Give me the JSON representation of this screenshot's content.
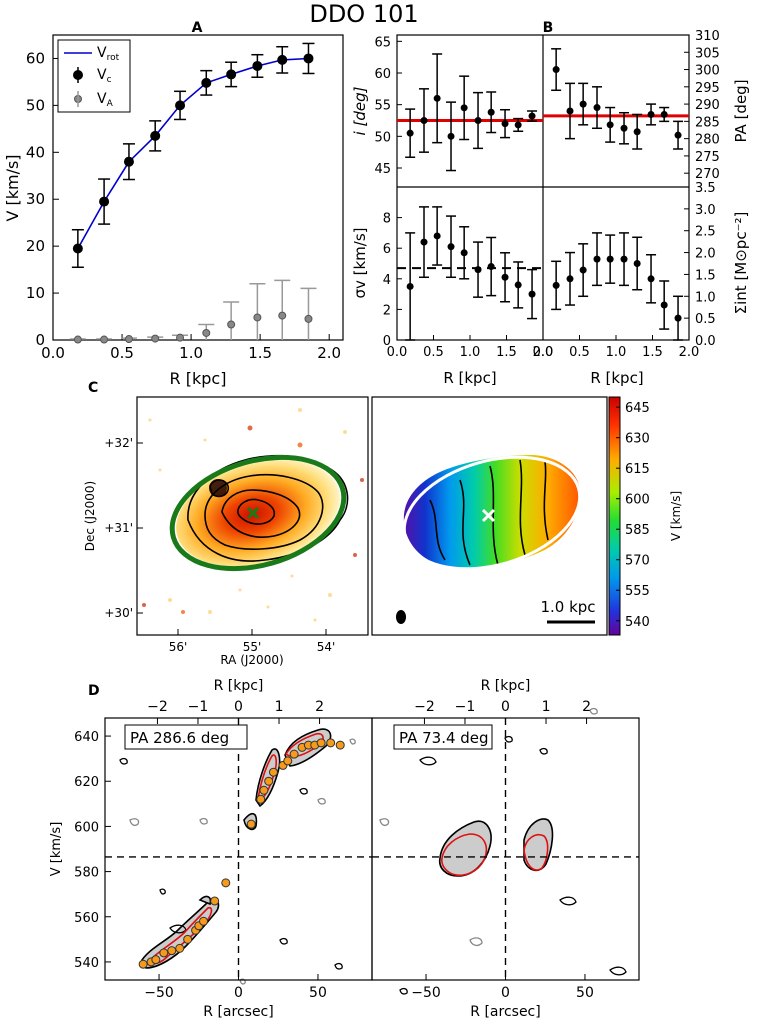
{
  "figure": {
    "title": "DDO 101",
    "panel_labels": {
      "a": "A",
      "b": "B",
      "c": "C",
      "d": "D"
    }
  },
  "chart_data": [
    {
      "id": "A",
      "type": "line",
      "xlabel": "R [kpc]",
      "ylabel": "V [km/s]",
      "xlim": [
        0.0,
        2.1
      ],
      "ylim": [
        0,
        65
      ],
      "xticks": [
        "0.0",
        "0.5",
        "1.0",
        "1.5",
        "2.0"
      ],
      "yticks": [
        "0",
        "10",
        "20",
        "30",
        "40",
        "50",
        "60"
      ],
      "legend": {
        "position": "top-left",
        "entries": [
          "V",
          "V",
          "V"
        ],
        "subscripts": [
          "rot",
          "c",
          "A"
        ]
      },
      "series": [
        {
          "name": "Vrot",
          "color": "#0000cc",
          "kind": "line",
          "x": [
            0.18,
            0.37,
            0.55,
            0.74,
            0.92,
            1.11,
            1.29,
            1.48,
            1.66,
            1.85
          ],
          "y": [
            19.5,
            29.5,
            38.0,
            43.5,
            50.0,
            54.8,
            56.6,
            58.4,
            59.7,
            60.0
          ]
        },
        {
          "name": "Vc",
          "color": "#000000",
          "kind": "points",
          "x": [
            0.18,
            0.37,
            0.55,
            0.74,
            0.92,
            1.11,
            1.29,
            1.48,
            1.66,
            1.85
          ],
          "y": [
            19.5,
            29.5,
            38.0,
            43.5,
            50.0,
            54.8,
            56.6,
            58.4,
            59.7,
            60.0
          ],
          "err": [
            4.0,
            4.8,
            3.8,
            3.2,
            3.0,
            2.6,
            2.6,
            2.4,
            2.8,
            3.2
          ]
        },
        {
          "name": "VA",
          "color": "#888888",
          "kind": "points",
          "x": [
            0.18,
            0.37,
            0.55,
            0.74,
            0.92,
            1.11,
            1.29,
            1.48,
            1.66,
            1.85
          ],
          "y": [
            0.1,
            0.1,
            0.2,
            0.3,
            0.5,
            1.5,
            3.3,
            4.8,
            5.2,
            4.5
          ],
          "err": [
            0.1,
            0.1,
            0.2,
            0.3,
            0.5,
            1.8,
            4.8,
            7.2,
            7.5,
            6.5
          ]
        }
      ]
    },
    {
      "id": "B-inclination",
      "type": "scatter",
      "ylabel": "i [deg]",
      "ylim": [
        42,
        66
      ],
      "xlim": [
        0,
        2.0
      ],
      "yticks": [
        "45",
        "50",
        "55",
        "60",
        "65"
      ],
      "fit": 52.5,
      "x": [
        0.18,
        0.37,
        0.55,
        0.74,
        0.92,
        1.11,
        1.29,
        1.48,
        1.66,
        1.85
      ],
      "y": [
        50.5,
        52.5,
        56.0,
        50.0,
        54.5,
        52.5,
        53.8,
        52.0,
        51.8,
        53.2
      ],
      "err": [
        3.8,
        5.0,
        7.0,
        5.4,
        5.0,
        4.4,
        3.2,
        2.2,
        1.0,
        0.8
      ]
    },
    {
      "id": "B-position-angle",
      "type": "scatter",
      "ylabel": "PA [deg]",
      "ylim": [
        266,
        310
      ],
      "xlim": [
        0,
        2.0
      ],
      "yticks": [
        "270",
        "275",
        "280",
        "285",
        "290",
        "295",
        "300",
        "305",
        "310"
      ],
      "fit": 286.6,
      "x": [
        0.18,
        0.37,
        0.55,
        0.74,
        0.92,
        1.11,
        1.29,
        1.48,
        1.66,
        1.85
      ],
      "y": [
        300.0,
        288.0,
        290.0,
        289.0,
        284.0,
        283.0,
        282.0,
        287.0,
        287.0,
        281.0
      ],
      "err": [
        6.0,
        8.0,
        6.0,
        6.0,
        5.0,
        4.5,
        5.0,
        3.0,
        2.0,
        4.0
      ]
    },
    {
      "id": "B-dispersion",
      "type": "scatter",
      "xlabel": "R [kpc]",
      "ylabel": "σv [km/s]",
      "ylim": [
        0,
        10
      ],
      "xlim": [
        0,
        2.0
      ],
      "xticks": [
        "0.0",
        "0.5",
        "1.0",
        "1.5",
        "2.0"
      ],
      "yticks": [
        "0",
        "2",
        "4",
        "6",
        "8"
      ],
      "mean": 4.7,
      "x": [
        0.18,
        0.37,
        0.55,
        0.74,
        0.92,
        1.11,
        1.29,
        1.48,
        1.66,
        1.85
      ],
      "y": [
        3.5,
        6.4,
        6.8,
        6.1,
        5.7,
        4.6,
        4.8,
        4.1,
        3.6,
        3.0
      ],
      "err": [
        3.5,
        2.3,
        1.9,
        2.0,
        1.7,
        1.8,
        1.9,
        1.6,
        1.5,
        1.6
      ]
    },
    {
      "id": "B-surface-density",
      "type": "scatter",
      "xlabel": "R [kpc]",
      "ylabel": "Σint [M⊙pc⁻²]",
      "ylim": [
        0,
        3.5
      ],
      "xlim": [
        0,
        2.0
      ],
      "xticks": [
        "0.0",
        "0.5",
        "1.0",
        "1.5",
        "2.0"
      ],
      "yticks": [
        "0.0",
        "0.5",
        "1.0",
        "1.5",
        "2.0",
        "2.5",
        "3.0",
        "3.5"
      ],
      "x": [
        0.18,
        0.37,
        0.55,
        0.74,
        0.92,
        1.11,
        1.29,
        1.48,
        1.66,
        1.85
      ],
      "y": [
        1.25,
        1.4,
        1.6,
        1.85,
        1.85,
        1.85,
        1.75,
        1.4,
        0.8,
        0.5
      ],
      "err": [
        0.55,
        0.6,
        0.6,
        0.6,
        0.55,
        0.6,
        0.6,
        0.55,
        0.55,
        0.5
      ]
    },
    {
      "id": "C-intensity-map",
      "type": "heatmap",
      "xlabel": "RA (J2000)",
      "ylabel": "Dec (J2000)",
      "xticks": [
        "56'",
        "55'",
        "54'"
      ],
      "yticks": [
        "+32'",
        "+31'",
        "+30'"
      ]
    },
    {
      "id": "C-velocity-field",
      "type": "heatmap",
      "colorbar_label": "V [km/s]",
      "colorbar_ticks": [
        "645",
        "630",
        "615",
        "600",
        "585",
        "570",
        "555",
        "540"
      ],
      "vmin": 533,
      "vmax": 650,
      "scalebar": "1.0 kpc"
    },
    {
      "id": "D-pv-major",
      "type": "scatter",
      "label": "PA 286.6 deg",
      "xlabel": "R [arcsec]",
      "ylabel": "V [km/s]",
      "top_xlabel": "R [kpc]",
      "xlim": [
        -84,
        84
      ],
      "ylim": [
        532,
        648
      ],
      "xticks": [
        "−50",
        "0",
        "50"
      ],
      "top_ticks": [
        "−2",
        "−1",
        "0",
        "1",
        "2"
      ],
      "yticks": [
        "540",
        "560",
        "580",
        "600",
        "620",
        "640"
      ],
      "points_x": [
        -60,
        -55,
        -52,
        -47,
        -42,
        -37,
        -32,
        -27,
        -25,
        -22,
        -15,
        -8,
        8,
        14,
        16,
        19,
        22,
        28,
        31,
        35,
        40,
        44,
        48,
        52,
        58,
        64
      ],
      "points_y": [
        539,
        540,
        541,
        544,
        545,
        546,
        550,
        554,
        556,
        558,
        567,
        575,
        601,
        612,
        616,
        620,
        624,
        627,
        629,
        632,
        635,
        636,
        636,
        637,
        637,
        636
      ]
    },
    {
      "id": "D-pv-minor",
      "type": "scatter",
      "label": "PA 73.4 deg",
      "xlabel": "R [arcsec]",
      "top_xlabel": "R [kpc]",
      "xlim": [
        -84,
        84
      ],
      "ylim": [
        532,
        648
      ],
      "xticks": [
        "−50",
        "0",
        "50"
      ],
      "top_ticks": [
        "−2",
        "−1",
        "0",
        "1",
        "2"
      ]
    }
  ]
}
